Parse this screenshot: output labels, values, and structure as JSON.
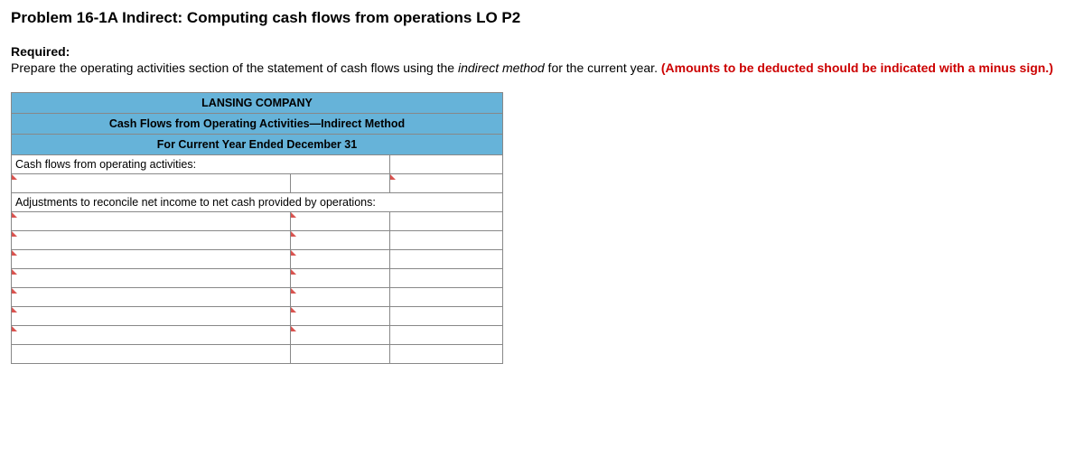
{
  "title": "Problem 16-1A Indirect: Computing cash flows from operations LO P2",
  "required_label": "Required:",
  "instr_pre": "Prepare the operating activities section of the statement of cash flows using the ",
  "instr_italic": "indirect method",
  "instr_post": " for the current year. ",
  "instr_red": "(Amounts to be deducted should be indicated with a minus sign.)",
  "table": {
    "header1": "LANSING COMPANY",
    "header2": "Cash Flows from Operating Activities—Indirect Method",
    "header3": "For Current Year Ended December 31",
    "row_cfoa": "Cash flows from operating activities:",
    "row_adj": "Adjustments to reconcile net income to net cash provided by operations:",
    "header_bg": "#66b3d9",
    "border_color": "#888888",
    "indicator_color": "#d9534f"
  }
}
